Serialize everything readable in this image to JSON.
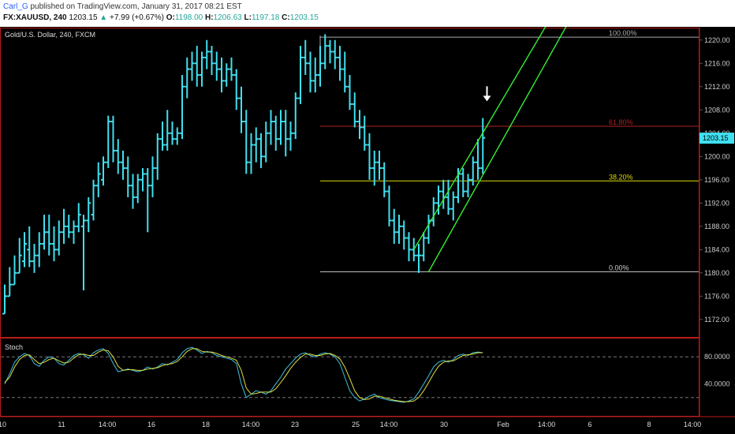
{
  "header": {
    "author": "Carl_G",
    "published_text": "published on TradingView.com, January 31, 2017 08:21 EST",
    "symbol": "FX:XAUUSD, 240",
    "last_price": "1203.15",
    "change_arrow": "▲",
    "change": "+7.99 (+0.67%)",
    "open_label": "O:",
    "open": "1198.00",
    "high_label": "H:",
    "high": "1206.63",
    "low_label": "L:",
    "low": "1197.18",
    "close_label": "C:",
    "close": "1203.15"
  },
  "colors": {
    "background": "#000000",
    "bar": "#40e0f0",
    "channel": "#33ee33",
    "fib_top": "#aaaaaa",
    "fib_618": "#b22222",
    "fib_382": "#dddd00",
    "fib_bottom": "#cccccc",
    "pane_border": "#b71c1c",
    "stoch_k": "#40c0e0",
    "stoch_d": "#e0e040"
  },
  "chart_data": [
    {
      "type": "ohlc",
      "title": "Gold/U.S. Dollar, 240, FXCM",
      "ylim": [
        1169,
        1222
      ],
      "y_ticks": [
        "1220.00",
        "1216.00",
        "1212.00",
        "1208.00",
        "1204.00",
        "1200.00",
        "1196.00",
        "1192.00",
        "1188.00",
        "1184.00",
        "1180.00",
        "1176.00",
        "1172.00"
      ],
      "x_ticks": [
        "10",
        "11",
        "14:00",
        "16",
        "18",
        "14:00",
        "23",
        "25",
        "14:00",
        "30",
        "Feb",
        "14:00",
        "6",
        "8",
        "14:00"
      ],
      "price_bars": [
        [
          1173,
          1178,
          1173,
          1176
        ],
        [
          1176,
          1181,
          1176,
          1178
        ],
        [
          1178,
          1183,
          1178,
          1180
        ],
        [
          1180,
          1186,
          1180,
          1183
        ],
        [
          1182,
          1187,
          1181,
          1185
        ],
        [
          1184,
          1188,
          1181,
          1182
        ],
        [
          1182,
          1185,
          1180,
          1183
        ],
        [
          1183,
          1187,
          1181,
          1185
        ],
        [
          1185,
          1190,
          1184,
          1187
        ],
        [
          1187,
          1190,
          1183,
          1185
        ],
        [
          1185,
          1188,
          1182,
          1184
        ],
        [
          1184,
          1189,
          1183,
          1187
        ],
        [
          1187,
          1191,
          1185,
          1188
        ],
        [
          1188,
          1190,
          1186,
          1187
        ],
        [
          1187,
          1189,
          1185,
          1188
        ],
        [
          1188,
          1192,
          1187,
          1190
        ],
        [
          1188,
          1190,
          1177,
          1189
        ],
        [
          1189,
          1193,
          1187,
          1192
        ],
        [
          1190,
          1196,
          1189,
          1195
        ],
        [
          1195,
          1199,
          1193,
          1197
        ],
        [
          1196,
          1200,
          1195,
          1199
        ],
        [
          1199,
          1207,
          1198,
          1206
        ],
        [
          1206,
          1207,
          1199,
          1201
        ],
        [
          1201,
          1203,
          1197,
          1199
        ],
        [
          1199,
          1201,
          1196,
          1198
        ],
        [
          1198,
          1200,
          1193,
          1195
        ],
        [
          1195,
          1197,
          1191,
          1193
        ],
        [
          1193,
          1197,
          1192,
          1196
        ],
        [
          1196,
          1198,
          1194,
          1197
        ],
        [
          1197,
          1198,
          1187,
          1195
        ],
        [
          1195,
          1200,
          1193,
          1198
        ],
        [
          1198,
          1204,
          1196,
          1203
        ],
        [
          1203,
          1206,
          1201,
          1202
        ],
        [
          1202,
          1208,
          1201,
          1204
        ],
        [
          1204,
          1206,
          1202,
          1203
        ],
        [
          1203,
          1205,
          1202,
          1204
        ],
        [
          1204,
          1214,
          1203,
          1212
        ],
        [
          1212,
          1217,
          1210,
          1215
        ],
        [
          1215,
          1218,
          1213,
          1216
        ],
        [
          1216,
          1219,
          1212,
          1214
        ],
        [
          1214,
          1218,
          1212,
          1217
        ],
        [
          1217,
          1220,
          1215,
          1218
        ],
        [
          1218,
          1219,
          1214,
          1216
        ],
        [
          1216,
          1218,
          1213,
          1215
        ],
        [
          1215,
          1217,
          1211,
          1213
        ],
        [
          1213,
          1216,
          1212,
          1215
        ],
        [
          1215,
          1217,
          1213,
          1214
        ],
        [
          1214,
          1215,
          1208,
          1210
        ],
        [
          1210,
          1212,
          1204,
          1206
        ],
        [
          1206,
          1208,
          1197,
          1199
        ],
        [
          1199,
          1204,
          1197,
          1202
        ],
        [
          1202,
          1205,
          1199,
          1203
        ],
        [
          1203,
          1204,
          1198,
          1200
        ],
        [
          1200,
          1206,
          1199,
          1204
        ],
        [
          1204,
          1208,
          1202,
          1206
        ],
        [
          1206,
          1207,
          1201,
          1203
        ],
        [
          1203,
          1208,
          1202,
          1206
        ],
        [
          1206,
          1208,
          1200,
          1203
        ],
        [
          1203,
          1206,
          1201,
          1204
        ],
        [
          1204,
          1211,
          1203,
          1210
        ],
        [
          1210,
          1219,
          1209,
          1217
        ],
        [
          1217,
          1220,
          1214,
          1216
        ],
        [
          1216,
          1218,
          1211,
          1213
        ],
        [
          1213,
          1217,
          1211,
          1214
        ],
        [
          1214,
          1219,
          1212,
          1216
        ],
        [
          1216,
          1221,
          1215,
          1219
        ],
        [
          1219,
          1220,
          1216,
          1218
        ],
        [
          1218,
          1220,
          1215,
          1217
        ],
        [
          1217,
          1219,
          1213,
          1215
        ],
        [
          1215,
          1218,
          1211,
          1212
        ],
        [
          1212,
          1214,
          1208,
          1209
        ],
        [
          1209,
          1211,
          1205,
          1206
        ],
        [
          1206,
          1208,
          1203,
          1205
        ],
        [
          1205,
          1207,
          1201,
          1202
        ],
        [
          1202,
          1204,
          1196,
          1198
        ],
        [
          1198,
          1201,
          1195,
          1199
        ],
        [
          1199,
          1201,
          1196,
          1198
        ],
        [
          1198,
          1199,
          1193,
          1194
        ],
        [
          1194,
          1195,
          1188,
          1189
        ],
        [
          1189,
          1191,
          1185,
          1187
        ],
        [
          1187,
          1190,
          1185,
          1188
        ],
        [
          1188,
          1189,
          1184,
          1186
        ],
        [
          1186,
          1187,
          1182,
          1184
        ],
        [
          1184,
          1186,
          1182,
          1183
        ],
        [
          1183,
          1185,
          1180,
          1183
        ],
        [
          1183,
          1187,
          1182,
          1186
        ],
        [
          1186,
          1190,
          1185,
          1189
        ],
        [
          1189,
          1193,
          1188,
          1192
        ],
        [
          1192,
          1195,
          1190,
          1194
        ],
        [
          1194,
          1196,
          1191,
          1193
        ],
        [
          1193,
          1196,
          1190,
          1191
        ],
        [
          1191,
          1194,
          1189,
          1193
        ],
        [
          1193,
          1198,
          1192,
          1197
        ],
        [
          1197,
          1198,
          1193,
          1194
        ],
        [
          1194,
          1197,
          1193,
          1196
        ],
        [
          1196,
          1200,
          1195,
          1199
        ],
        [
          1199,
          1203,
          1196,
          1198
        ],
        [
          1198,
          1206.6,
          1197,
          1203.2
        ]
      ],
      "fibonacci": [
        {
          "label": "100.00%",
          "price": 1220.5
        },
        {
          "label": "61.80%",
          "price": 1205.2
        },
        {
          "label": "38.20%",
          "price": 1195.8
        },
        {
          "label": "0.00%",
          "price": 1180.2
        }
      ],
      "channel_lines": [
        {
          "from_bar": 83,
          "from_price": 1184.0,
          "to_bar": 113,
          "to_price": 1227.0
        },
        {
          "from_bar": 86,
          "from_price": 1180.2,
          "to_bar": 117,
          "to_price": 1227.0
        }
      ],
      "arrow_annotation": {
        "bar": 98,
        "price": 1208.8
      },
      "current_value_badge": "1203.15"
    },
    {
      "type": "line",
      "title": "Stoch",
      "ylim": [
        0,
        100
      ],
      "y_ticks": [
        "80.0000",
        "40.0000"
      ],
      "dashed_levels": [
        80,
        20
      ],
      "series": [
        {
          "values": [
            40,
            55,
            72,
            80,
            85,
            82,
            70,
            66,
            75,
            80,
            78,
            70,
            68,
            75,
            82,
            85,
            83,
            78,
            86,
            90,
            92,
            85,
            70,
            58,
            60,
            62,
            60,
            58,
            60,
            65,
            62,
            65,
            70,
            68,
            72,
            76,
            86,
            92,
            94,
            90,
            85,
            88,
            86,
            82,
            80,
            78,
            76,
            70,
            40,
            20,
            25,
            30,
            28,
            25,
            30,
            40,
            50,
            62,
            70,
            78,
            84,
            86,
            82,
            80,
            84,
            86,
            84,
            80,
            70,
            50,
            30,
            20,
            15,
            18,
            22,
            25,
            20,
            18,
            16,
            15,
            14,
            13,
            15,
            18,
            28,
            40,
            52,
            65,
            72,
            75,
            72,
            76,
            82,
            84,
            82,
            86,
            87,
            86
          ]
        },
        {
          "values": [
            42,
            50,
            65,
            76,
            82,
            83,
            76,
            70,
            72,
            76,
            78,
            74,
            71,
            72,
            78,
            83,
            84,
            82,
            82,
            87,
            90,
            89,
            80,
            66,
            60,
            61,
            61,
            60,
            60,
            62,
            63,
            64,
            67,
            69,
            70,
            73,
            80,
            88,
            92,
            92,
            88,
            87,
            87,
            85,
            82,
            80,
            78,
            75,
            60,
            34,
            25,
            26,
            28,
            28,
            28,
            33,
            42,
            52,
            63,
            72,
            79,
            84,
            84,
            82,
            82,
            84,
            85,
            82,
            77,
            65,
            48,
            30,
            20,
            17,
            18,
            22,
            22,
            20,
            18,
            16,
            15,
            14,
            14,
            15,
            20,
            30,
            42,
            55,
            66,
            72,
            74,
            74,
            78,
            82,
            83,
            84,
            86,
            86
          ]
        }
      ]
    }
  ]
}
